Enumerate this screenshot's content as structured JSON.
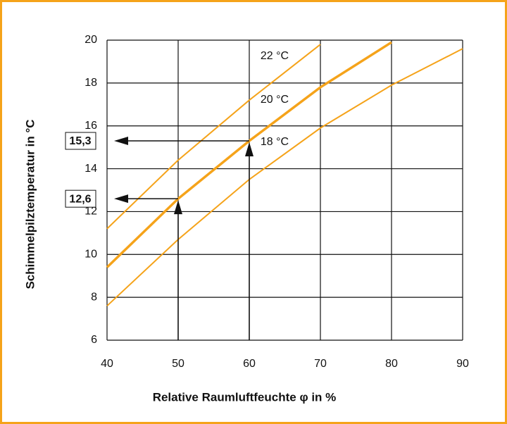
{
  "chart_data": {
    "type": "line",
    "xlabel": "Relative Raumluftfeuchte φ in %",
    "ylabel": "Schimmelpilztemperatur  in °C",
    "x": [
      40,
      50,
      60,
      70,
      80,
      90
    ],
    "series": [
      {
        "name": "22 °C",
        "color": "#f5a31a",
        "values": [
          11.2,
          14.4,
          17.2,
          19.8,
          null,
          null
        ]
      },
      {
        "name": "20 °C",
        "color": "#f5a31a",
        "values": [
          9.4,
          12.6,
          15.3,
          17.8,
          19.9,
          null
        ]
      },
      {
        "name": "18 °C",
        "color": "#f5a31a",
        "values": [
          7.6,
          10.7,
          13.5,
          15.9,
          17.9,
          19.6
        ]
      }
    ],
    "annotations": [
      {
        "x": 60,
        "y": 15.3,
        "label": "15,3"
      },
      {
        "x": 50,
        "y": 12.6,
        "label": "12,6"
      }
    ],
    "xlim": [
      40,
      90
    ],
    "xticks": [
      40,
      50,
      60,
      70,
      80,
      90
    ],
    "ylim": [
      6,
      20
    ],
    "yticks": [
      6,
      8,
      10,
      12,
      14,
      16,
      18,
      20
    ],
    "grid": true
  }
}
